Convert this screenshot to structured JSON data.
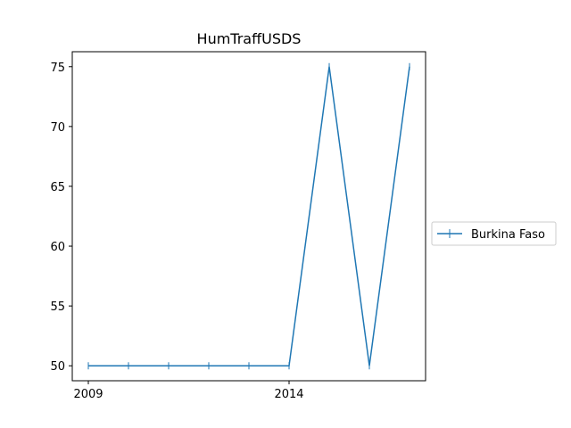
{
  "chart_data": {
    "type": "line",
    "title": "HumTraffUSDS",
    "xlabel": "",
    "ylabel": "",
    "x": [
      2009,
      2010,
      2011,
      2012,
      2013,
      2014,
      2015,
      2016,
      2017
    ],
    "series": [
      {
        "name": "Burkina Faso",
        "values": [
          50,
          50,
          50,
          50,
          50,
          50,
          75,
          50,
          75
        ],
        "color": "#1f77b4",
        "marker": "+"
      }
    ],
    "xlim": [
      2008.6,
      2017.4
    ],
    "ylim": [
      48.75,
      76.25
    ],
    "x_ticks": [
      2009,
      2014
    ],
    "x_tick_labels": [
      "2009",
      "2014"
    ],
    "y_ticks": [
      50,
      55,
      60,
      65,
      70,
      75
    ],
    "y_tick_labels": [
      "50",
      "55",
      "60",
      "65",
      "70",
      "75"
    ],
    "grid": false,
    "legend_position": "right"
  }
}
